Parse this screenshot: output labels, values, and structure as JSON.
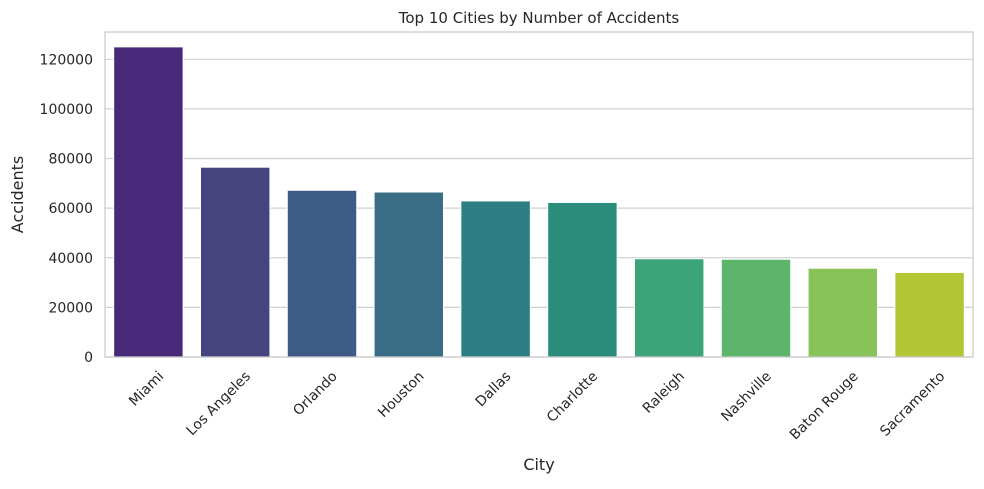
{
  "chart_data": {
    "type": "bar",
    "title": "Top 10 Cities by Number of Accidents",
    "xlabel": "City",
    "ylabel": "Accidents",
    "categories": [
      "Miami",
      "Los Angeles",
      "Orlando",
      "Houston",
      "Dallas",
      "Charlotte",
      "Raleigh",
      "Nashville",
      "Baton Rouge",
      "Sacramento"
    ],
    "values": [
      125000,
      76500,
      67200,
      66500,
      62900,
      62300,
      39600,
      39400,
      35800,
      34100
    ],
    "ylim": [
      0,
      131000
    ],
    "yticks": [
      0,
      20000,
      40000,
      60000,
      80000,
      100000,
      120000
    ],
    "grid": "horizontal",
    "colors": [
      "#482878",
      "#46447e",
      "#3e5a86",
      "#386d85",
      "#2d7e82",
      "#2c8c7c",
      "#3da378",
      "#5db56b",
      "#8ac25a",
      "#b3c735"
    ]
  }
}
